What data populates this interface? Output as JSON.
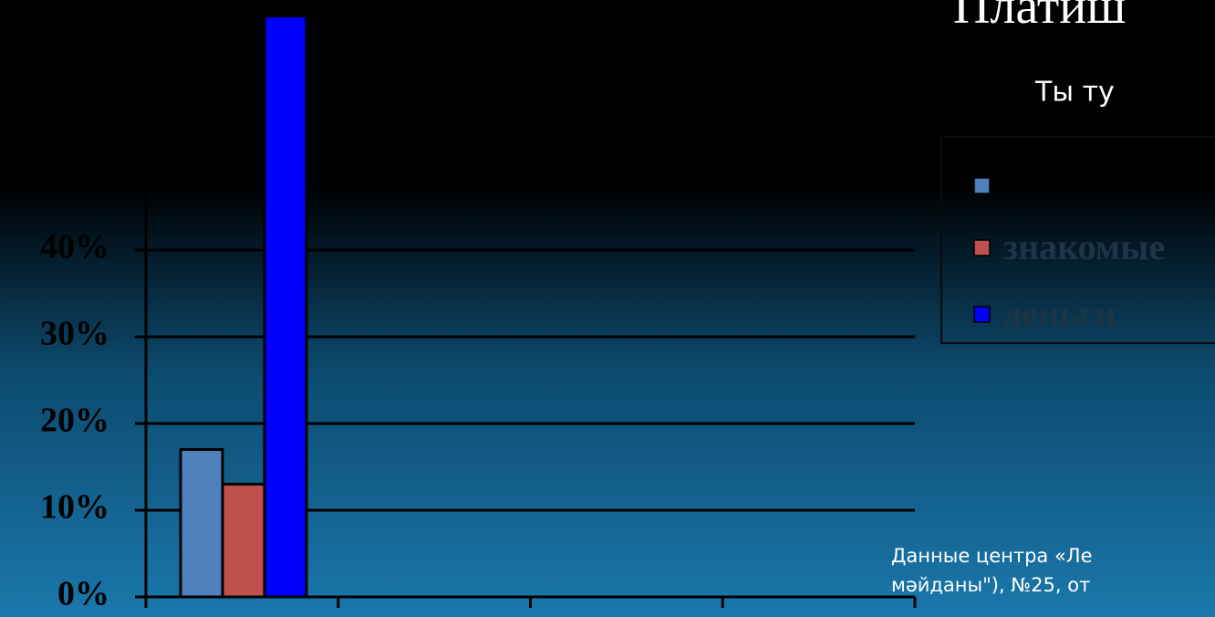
{
  "slide": {
    "title": "Платиш",
    "subtitle": "Ты ту",
    "source": [
      "Данные центра «Ле",
      "мәйданы\"), №25, от"
    ]
  },
  "chart_data": {
    "type": "bar",
    "categories": [
      null,
      null,
      null,
      null
    ],
    "series": [
      {
        "name": null,
        "color": "#4f81bd",
        "values": [
          17,
          null,
          null,
          null
        ]
      },
      {
        "name": "знакомые",
        "color": "#c0504d",
        "values": [
          13,
          null,
          null,
          null
        ]
      },
      {
        "name": "деньги",
        "color": "#0000ff",
        "values": [
          67,
          null,
          null,
          null
        ]
      }
    ],
    "ylim": [
      0,
      68
    ],
    "yticks": [
      {
        "value": 0,
        "label": "0%"
      },
      {
        "value": 10,
        "label": "10%"
      },
      {
        "value": 20,
        "label": "20%"
      },
      {
        "value": 30,
        "label": "30%"
      },
      {
        "value": 40,
        "label": "40%"
      }
    ],
    "grid": true,
    "legend": "right"
  }
}
